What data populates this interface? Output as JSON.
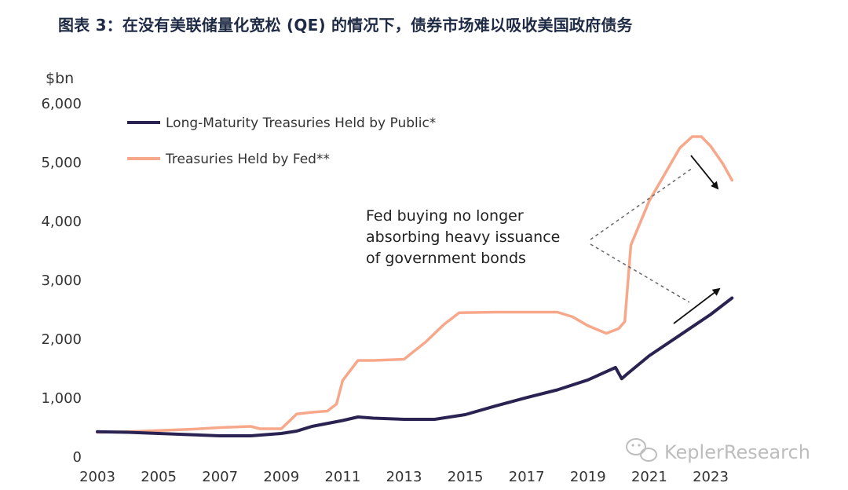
{
  "title": "图表 3：在没有美联储量化宽松 (QE) 的情况下，债券市场难以吸收美国政府债务",
  "watermark": "KeplerResearch",
  "colors": {
    "public": "#2a2352",
    "fed": "#f8a88a"
  },
  "chart_data": {
    "type": "line",
    "ylabel": "$bn",
    "ylim": [
      0,
      6000
    ],
    "yticks": [
      0,
      1000,
      2000,
      3000,
      4000,
      5000,
      6000
    ],
    "ytick_labels": [
      "0",
      "1,000",
      "2,000",
      "3,000",
      "4,000",
      "5,000",
      "6,000"
    ],
    "xlim": [
      2003,
      2023.7
    ],
    "xticks": [
      2003,
      2005,
      2007,
      2009,
      2011,
      2013,
      2015,
      2017,
      2019,
      2021,
      2023
    ],
    "xtick_labels": [
      "2003",
      "2005",
      "2007",
      "2009",
      "2011",
      "2013",
      "2015",
      "2017",
      "2019",
      "2021",
      "2023"
    ],
    "grid": false,
    "legend_position": "top-left",
    "series": [
      {
        "name": "Long-Maturity Treasuries Held by Public*",
        "color": "#2a2352",
        "x": [
          2003,
          2004,
          2005,
          2006,
          2007,
          2008,
          2009,
          2009.5,
          2010,
          2011,
          2011.5,
          2012,
          2013,
          2014,
          2015,
          2016,
          2017,
          2018,
          2019,
          2019.9,
          2020.1,
          2020.3,
          2021,
          2022,
          2023,
          2023.7
        ],
        "y": [
          430,
          420,
          400,
          380,
          360,
          360,
          400,
          440,
          520,
          620,
          680,
          660,
          640,
          640,
          720,
          870,
          1010,
          1140,
          1310,
          1520,
          1330,
          1420,
          1720,
          2070,
          2420,
          2700
        ]
      },
      {
        "name": "Treasuries Held by Fed**",
        "color": "#f8a88a",
        "x": [
          2003,
          2004,
          2005,
          2006,
          2007,
          2008,
          2008.3,
          2009,
          2009.5,
          2010,
          2010.5,
          2010.8,
          2011,
          2011.5,
          2012,
          2013,
          2013.7,
          2014.3,
          2014.8,
          2016,
          2017,
          2018,
          2018.5,
          2019,
          2019.6,
          2020,
          2020.2,
          2020.4,
          2021,
          2021.5,
          2022,
          2022.4,
          2022.7,
          2023,
          2023.4,
          2023.7
        ],
        "y": [
          420,
          430,
          450,
          470,
          500,
          520,
          480,
          480,
          730,
          760,
          780,
          900,
          1300,
          1640,
          1640,
          1660,
          1950,
          2250,
          2450,
          2460,
          2460,
          2460,
          2380,
          2230,
          2100,
          2180,
          2300,
          3600,
          4350,
          4800,
          5250,
          5440,
          5440,
          5280,
          4980,
          4700
        ]
      }
    ],
    "annotation": {
      "lines": [
        "Fed buying no longer",
        "absorbing heavy issuance",
        "of government bonds"
      ]
    }
  }
}
